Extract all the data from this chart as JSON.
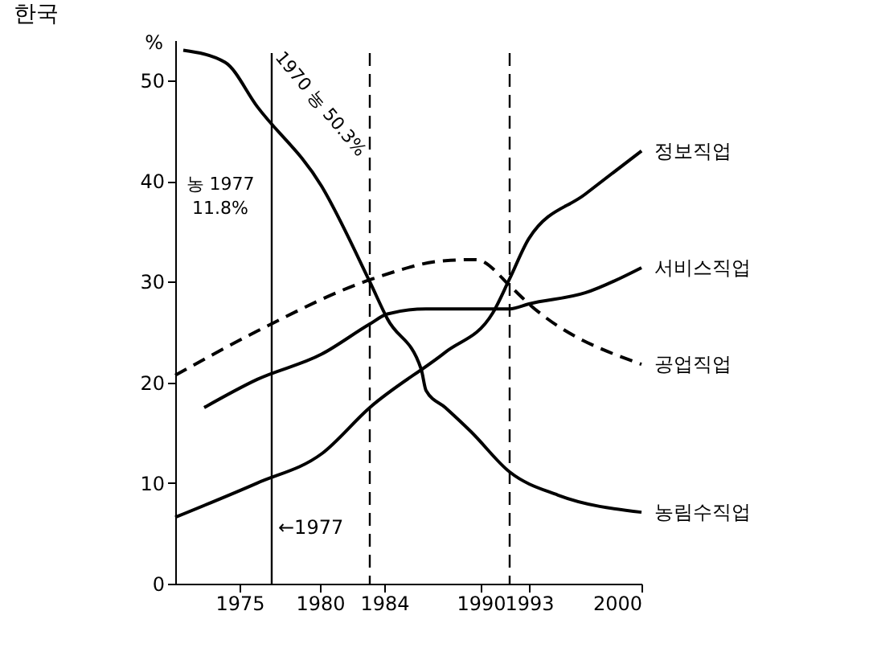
{
  "chart_data": {
    "type": "line",
    "title": "한국",
    "ylabel": "%",
    "xlim": [
      1971,
      2000
    ],
    "xticks": [
      1975,
      1980,
      1984,
      1990,
      1993,
      2000
    ],
    "ylim": [
      0,
      54
    ],
    "yticks": [
      0,
      10,
      20,
      30,
      40,
      50
    ],
    "grid": false,
    "line_style": "solid",
    "series": [
      {
        "name": "정보직업",
        "color": "#000000",
        "x": [
          1971,
          1976.1,
          1980.1,
          1983.1,
          1987.8,
          1990.75,
          1991.8,
          1993,
          1996.5,
          2000
        ],
        "values": [
          6.6,
          10.0,
          12.9,
          17.5,
          23.0,
          26.9,
          30.3,
          34.3,
          38.7,
          43.0
        ]
      },
      {
        "name": "서비스직업",
        "color": "#000000",
        "x": [
          1972.8,
          1976.1,
          1980.1,
          1983.1,
          1984.2,
          1986.6,
          1989.4,
          1991.8,
          1993,
          1996.5,
          2000
        ],
        "values": [
          17.5,
          20.3,
          22.8,
          25.8,
          26.8,
          27.3,
          27.3,
          27.3,
          27.8,
          28.9,
          31.4
        ]
      },
      {
        "name": "공업직업",
        "color": "#000000",
        "line_style": "dashed",
        "x": [
          1971,
          1976.1,
          1983.3,
          1987.8,
          1989.7,
          1992,
          1993,
          2000
        ],
        "values": [
          20.7,
          25.1,
          30.3,
          32.1,
          32.2,
          29.3,
          27.8,
          21.8
        ]
      },
      {
        "name": "농림수직업",
        "color": "#000000",
        "x": [
          1971.5,
          1974.1,
          1976.1,
          1980.1,
          1983.1,
          1984.2,
          1986.3,
          1986.6,
          1987.8,
          1989.4,
          1991.8,
          1994.8,
          2000
        ],
        "values": [
          53.0,
          51.8,
          47.4,
          39.5,
          30.0,
          26.3,
          21.3,
          19.2,
          17.5,
          15.1,
          11.1,
          8.8,
          7.1
        ]
      }
    ],
    "ref_lines": [
      {
        "axis": "x",
        "value": 1977,
        "label": "←1977",
        "line_style": "solid"
      },
      {
        "axis": "x",
        "value": 1983.1,
        "line_style": "dashed"
      },
      {
        "axis": "x",
        "value": 1991.8,
        "line_style": "dashed"
      }
    ],
    "annotations": [
      "1970 농 50.3%",
      "농 1977\n11.8%"
    ]
  }
}
